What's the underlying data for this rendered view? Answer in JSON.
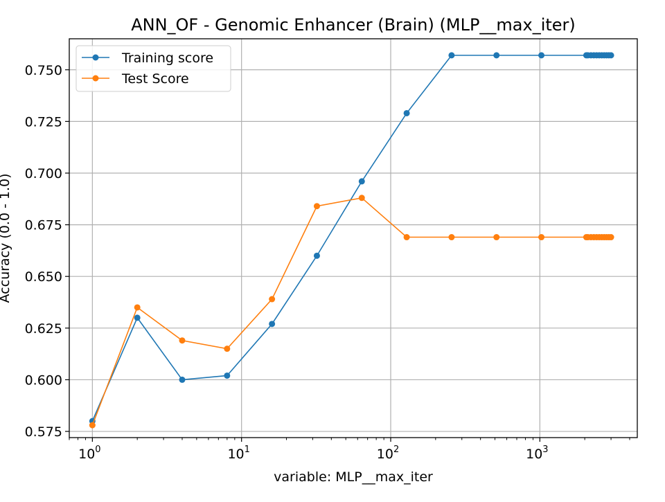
{
  "chart_data": {
    "type": "line",
    "title": "ANN_OF - Genomic Enhancer (Brain) (MLP__max_iter)",
    "xlabel": "variable: MLP__max_iter",
    "ylabel": "Accuracy (0.0 - 1.0)",
    "x_scale": "log",
    "xlim": [
      0.7,
      4500
    ],
    "ylim": [
      0.572,
      0.765
    ],
    "grid": true,
    "legend_position": "top-left",
    "x_ticks": [
      {
        "value": 1,
        "base": "10",
        "exp": "0"
      },
      {
        "value": 10,
        "base": "10",
        "exp": "1"
      },
      {
        "value": 100,
        "base": "10",
        "exp": "2"
      },
      {
        "value": 1000,
        "base": "10",
        "exp": "3"
      }
    ],
    "y_ticks": [
      0.575,
      0.6,
      0.625,
      0.65,
      0.675,
      0.7,
      0.725,
      0.75
    ],
    "y_tick_labels": [
      "0.575",
      "0.600",
      "0.625",
      "0.650",
      "0.675",
      "0.700",
      "0.725",
      "0.750"
    ],
    "x": [
      1,
      2,
      4,
      8,
      16,
      32,
      64,
      128,
      256,
      512,
      1024,
      2048,
      2100,
      2200,
      2300,
      2400,
      2500,
      2600,
      2700,
      2800,
      2900,
      3000
    ],
    "series": [
      {
        "name": "Training score",
        "color": "#1f77b4",
        "values": [
          0.58,
          0.63,
          0.6,
          0.602,
          0.627,
          0.66,
          0.696,
          0.729,
          0.757,
          0.757,
          0.757,
          0.757,
          0.757,
          0.757,
          0.757,
          0.757,
          0.757,
          0.757,
          0.757,
          0.757,
          0.757,
          0.757
        ]
      },
      {
        "name": "Test Score",
        "color": "#ff7f0e",
        "values": [
          0.578,
          0.635,
          0.619,
          0.615,
          0.639,
          0.684,
          0.688,
          0.669,
          0.669,
          0.669,
          0.669,
          0.669,
          0.669,
          0.669,
          0.669,
          0.669,
          0.669,
          0.669,
          0.669,
          0.669,
          0.669,
          0.669
        ]
      }
    ]
  }
}
